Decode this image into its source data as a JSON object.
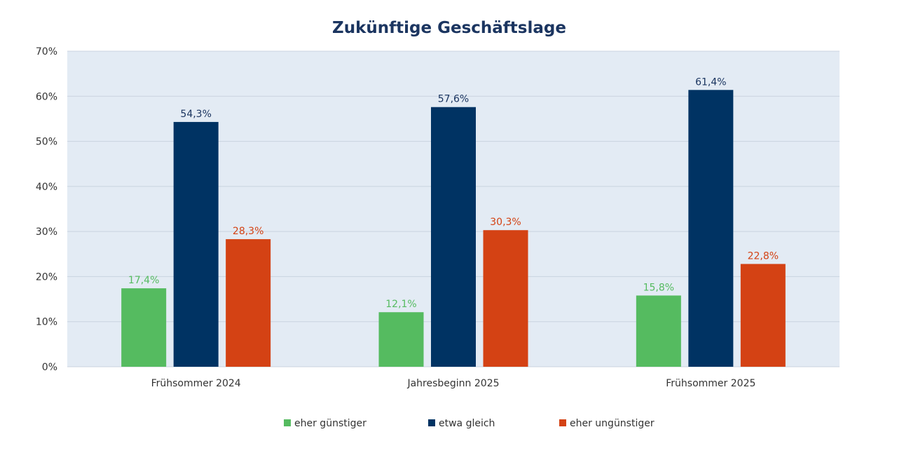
{
  "chart_data": {
    "type": "bar",
    "title": "Zukünftige Geschäftslage",
    "categories": [
      "Frühsommer 2024",
      "Jahresbeginn 2025",
      "Frühsommer 2025"
    ],
    "series": [
      {
        "name": "eher günstiger",
        "values": [
          17.4,
          12.1,
          15.8
        ],
        "labels": [
          "17,4%",
          "12,1%",
          "15,8%"
        ],
        "color": "#55bb60"
      },
      {
        "name": "etwa gleich",
        "values": [
          54.3,
          57.6,
          61.4
        ],
        "labels": [
          "54,3%",
          "57,6%",
          "61,4%"
        ],
        "color": "#003363"
      },
      {
        "name": "eher ungünstiger",
        "values": [
          28.3,
          30.3,
          22.8
        ],
        "labels": [
          "28,3%",
          "30,3%",
          "22,8%"
        ],
        "color": "#d44214"
      }
    ],
    "yticks": [
      "0%",
      "10%",
      "20%",
      "30%",
      "40%",
      "50%",
      "60%",
      "70%"
    ],
    "ylim": [
      0,
      70
    ],
    "grid": true,
    "legend_position": "bottom-center",
    "plot_background": "#e3ebf4"
  }
}
